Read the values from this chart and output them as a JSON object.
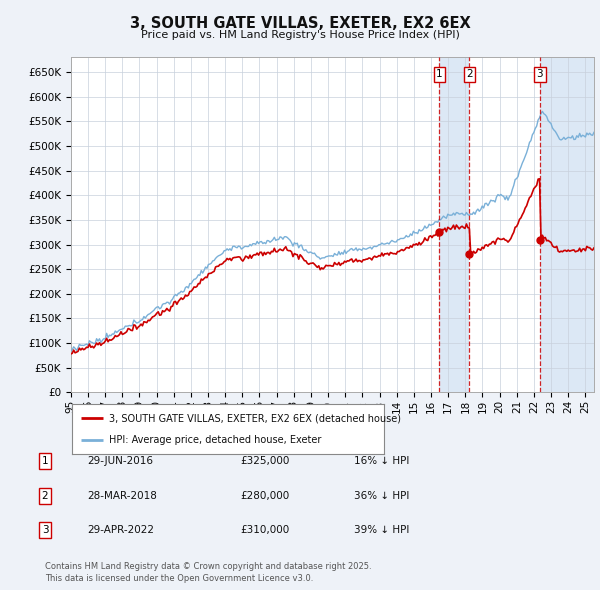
{
  "title": "3, SOUTH GATE VILLAS, EXETER, EX2 6EX",
  "subtitle": "Price paid vs. HM Land Registry's House Price Index (HPI)",
  "background_color": "#eef2f8",
  "plot_bg_color": "#ffffff",
  "grid_color": "#c8d0dc",
  "hpi_color": "#7ab0d8",
  "price_color": "#cc0000",
  "vline_color": "#cc0000",
  "shade_color": "#dce8f5",
  "transactions": [
    {
      "date_num": 2016.49,
      "price": 325000,
      "label": "1"
    },
    {
      "date_num": 2018.24,
      "price": 280000,
      "label": "2"
    },
    {
      "date_num": 2022.33,
      "price": 310000,
      "label": "3"
    }
  ],
  "legend_entries": [
    {
      "label": "3, SOUTH GATE VILLAS, EXETER, EX2 6EX (detached house)",
      "color": "#cc0000"
    },
    {
      "label": "HPI: Average price, detached house, Exeter",
      "color": "#7ab0d8"
    }
  ],
  "table_rows": [
    {
      "num": "1",
      "date": "29-JUN-2016",
      "price": "£325,000",
      "change": "16% ↓ HPI"
    },
    {
      "num": "2",
      "date": "28-MAR-2018",
      "price": "£280,000",
      "change": "36% ↓ HPI"
    },
    {
      "num": "3",
      "date": "29-APR-2022",
      "price": "£310,000",
      "change": "39% ↓ HPI"
    }
  ],
  "footer": "Contains HM Land Registry data © Crown copyright and database right 2025.\nThis data is licensed under the Open Government Licence v3.0.",
  "ylim": [
    0,
    680000
  ],
  "xlim_start": 1995.0,
  "xlim_end": 2025.5,
  "yticks": [
    0,
    50000,
    100000,
    150000,
    200000,
    250000,
    300000,
    350000,
    400000,
    450000,
    500000,
    550000,
    600000,
    650000
  ],
  "ytick_labels": [
    "£0",
    "£50K",
    "£100K",
    "£150K",
    "£200K",
    "£250K",
    "£300K",
    "£350K",
    "£400K",
    "£450K",
    "£500K",
    "£550K",
    "£600K",
    "£650K"
  ],
  "xticks": [
    1995,
    1996,
    1997,
    1998,
    1999,
    2000,
    2001,
    2002,
    2003,
    2004,
    2005,
    2006,
    2007,
    2008,
    2009,
    2010,
    2011,
    2012,
    2013,
    2014,
    2015,
    2016,
    2017,
    2018,
    2019,
    2020,
    2021,
    2022,
    2023,
    2024,
    2025
  ],
  "xtick_labels": [
    "95",
    "96",
    "97",
    "98",
    "99",
    "00",
    "01",
    "02",
    "03",
    "04",
    "05",
    "06",
    "07",
    "08",
    "09",
    "10",
    "11",
    "12",
    "13",
    "14",
    "15",
    "16",
    "17",
    "18",
    "19",
    "20",
    "21",
    "22",
    "23",
    "24",
    "25"
  ]
}
